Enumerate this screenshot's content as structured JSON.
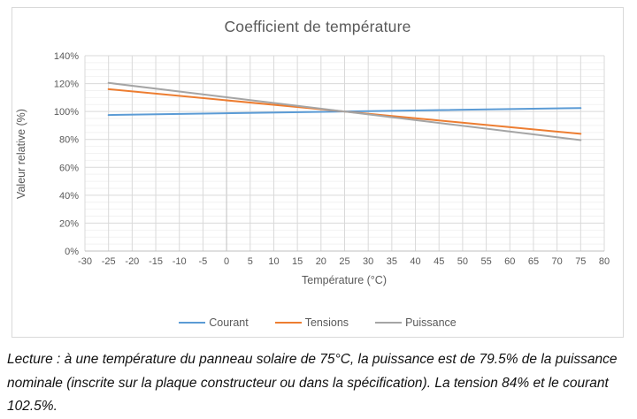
{
  "chart_data": {
    "type": "line",
    "title": "Coefficient de température",
    "xlabel": "Température (°C)",
    "ylabel": "Valeur relative (%)",
    "xlim": [
      -30,
      80
    ],
    "ylim": [
      0,
      140
    ],
    "x_tick_step": 5,
    "y_tick_step": 20,
    "y_minor_step": 5,
    "y_tick_suffix": "%",
    "grid": true,
    "legend_position": "bottom",
    "series": [
      {
        "name": "Courant",
        "color": "#5B9BD5",
        "x": [
          -25,
          75
        ],
        "values": [
          97.5,
          102.5
        ]
      },
      {
        "name": "Tensions",
        "color": "#ED7D31",
        "x": [
          -25,
          75
        ],
        "values": [
          116,
          84
        ]
      },
      {
        "name": "Puissance",
        "color": "#A5A5A5",
        "x": [
          -25,
          75
        ],
        "values": [
          120.5,
          79.5
        ]
      }
    ]
  },
  "colors": {
    "grid_major": "#D9D9D9",
    "grid_minor": "#F2F2F2",
    "axis_line": "#BFBFBF",
    "title_text": "#595959",
    "tick_text": "#595959"
  },
  "caption": {
    "text": "Lecture : à une température du panneau solaire de 75°C, la puissance est de 79.5% de la puissance nominale (inscrite sur la plaque constructeur ou dans la spécification). La tension 84% et le courant 102.5%."
  }
}
